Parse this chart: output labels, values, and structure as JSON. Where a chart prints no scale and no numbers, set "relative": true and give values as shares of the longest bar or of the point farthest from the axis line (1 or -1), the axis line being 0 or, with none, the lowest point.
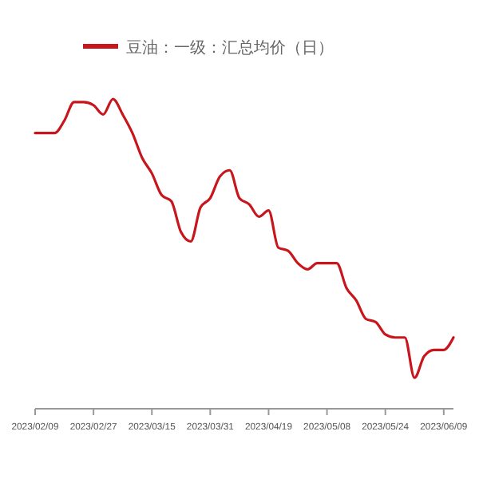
{
  "chart_data": {
    "type": "line",
    "relative": true,
    "legend": "top",
    "marker": "none",
    "line_style": "solid",
    "categories": [
      "2023/02/09",
      null,
      null,
      null,
      null,
      null,
      "2023/02/27",
      null,
      null,
      null,
      null,
      null,
      "2023/03/15",
      null,
      null,
      null,
      null,
      null,
      "2023/03/31",
      null,
      null,
      null,
      null,
      null,
      "2023/04/19",
      null,
      null,
      null,
      null,
      null,
      "2023/05/08",
      null,
      null,
      null,
      null,
      null,
      "2023/05/24",
      null,
      null,
      null,
      null,
      null,
      "2023/06/09",
      null
    ],
    "series": [
      {
        "name": "豆油：一级：汇总均价（日）",
        "color": "#c8161d",
        "values": [
          0.89,
          0.89,
          0.89,
          0.93,
          0.99,
          0.99,
          0.98,
          0.95,
          1,
          0.95,
          0.89,
          0.81,
          0.76,
          0.69,
          0.67,
          0.57,
          0.54,
          0.65,
          0.68,
          0.75,
          0.77,
          0.68,
          0.66,
          0.62,
          0.64,
          0.52,
          0.51,
          0.47,
          0.45,
          0.47,
          0.47,
          0.47,
          0.39,
          0.35,
          0.29,
          0.28,
          0.24,
          0.23,
          0.23,
          0.1,
          0.17,
          0.19,
          0.19,
          0.23
        ]
      }
    ]
  }
}
